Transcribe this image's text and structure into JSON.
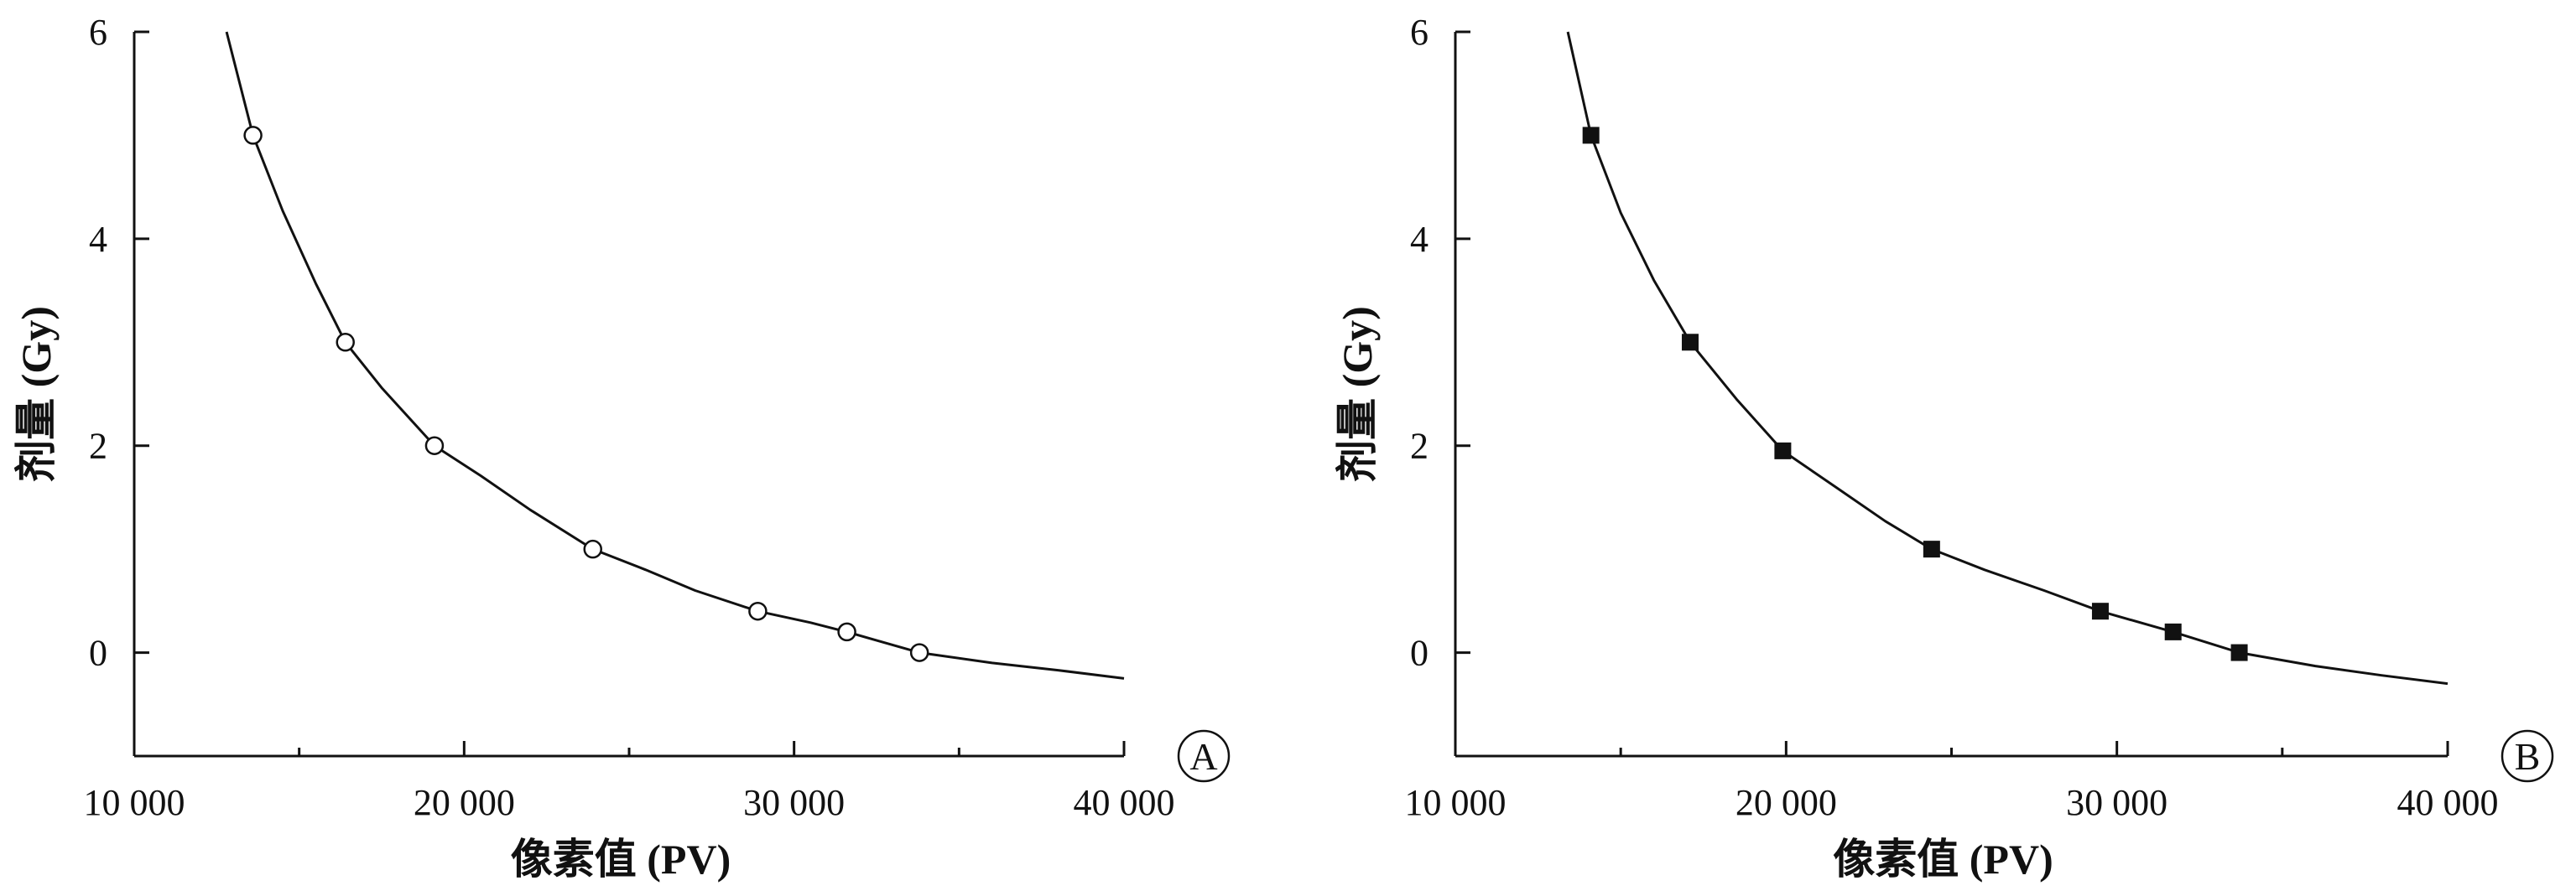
{
  "chart_data": [
    {
      "type": "scatter",
      "panel_label": "A",
      "marker": "open-circle",
      "xlabel": "像素值 (PV)",
      "ylabel": "剂量 (Gy)",
      "xlim": [
        10000,
        40000
      ],
      "ylim": [
        -1,
        6
      ],
      "x_ticks": [
        10000,
        20000,
        30000,
        40000
      ],
      "x_tick_labels": [
        "10 000",
        "20 000",
        "30 000",
        "40 000"
      ],
      "y_ticks": [
        0,
        2,
        4,
        6
      ],
      "y_tick_labels": [
        "0",
        "2",
        "4",
        "6"
      ],
      "grid": false,
      "points": [
        {
          "x": 13600,
          "y": 5.0
        },
        {
          "x": 16400,
          "y": 3.0
        },
        {
          "x": 19100,
          "y": 2.0
        },
        {
          "x": 23900,
          "y": 1.0
        },
        {
          "x": 28900,
          "y": 0.4
        },
        {
          "x": 31600,
          "y": 0.2
        },
        {
          "x": 33800,
          "y": 0.0
        }
      ],
      "fit_curve": {
        "type": "rational",
        "x": [
          12800,
          13600,
          14500,
          15500,
          16400,
          17500,
          19100,
          20500,
          22000,
          23900,
          25500,
          27000,
          28900,
          30500,
          31600,
          33800,
          36000,
          38000,
          40000
        ],
        "y": [
          6.0,
          5.0,
          4.27,
          3.57,
          3.0,
          2.56,
          2.0,
          1.71,
          1.38,
          1.0,
          0.8,
          0.6,
          0.4,
          0.29,
          0.2,
          0.0,
          -0.1,
          -0.17,
          -0.25
        ]
      }
    },
    {
      "type": "scatter",
      "panel_label": "B",
      "marker": "filled-square",
      "xlabel": "像素值 (PV)",
      "ylabel": "剂量 (Gy)",
      "xlim": [
        10000,
        40000
      ],
      "ylim": [
        -1,
        6
      ],
      "x_ticks": [
        10000,
        20000,
        30000,
        40000
      ],
      "x_tick_labels": [
        "10 000",
        "20 000",
        "30 000",
        "40 000"
      ],
      "y_ticks": [
        0,
        2,
        4,
        6
      ],
      "y_tick_labels": [
        "0",
        "2",
        "4",
        "6"
      ],
      "grid": false,
      "points": [
        {
          "x": 14100,
          "y": 5.0
        },
        {
          "x": 17100,
          "y": 3.0
        },
        {
          "x": 19900,
          "y": 1.95
        },
        {
          "x": 24400,
          "y": 1.0
        },
        {
          "x": 29500,
          "y": 0.4
        },
        {
          "x": 31700,
          "y": 0.2
        },
        {
          "x": 33700,
          "y": 0.0
        }
      ],
      "fit_curve": {
        "type": "rational",
        "x": [
          13400,
          14100,
          15000,
          16000,
          17100,
          18500,
          19900,
          21500,
          23000,
          24400,
          26000,
          27800,
          29500,
          31700,
          33700,
          36000,
          38000,
          40000
        ],
        "y": [
          6.0,
          5.0,
          4.25,
          3.6,
          3.0,
          2.45,
          1.95,
          1.6,
          1.27,
          1.0,
          0.8,
          0.6,
          0.4,
          0.2,
          0.0,
          -0.13,
          -0.22,
          -0.3
        ]
      }
    }
  ]
}
